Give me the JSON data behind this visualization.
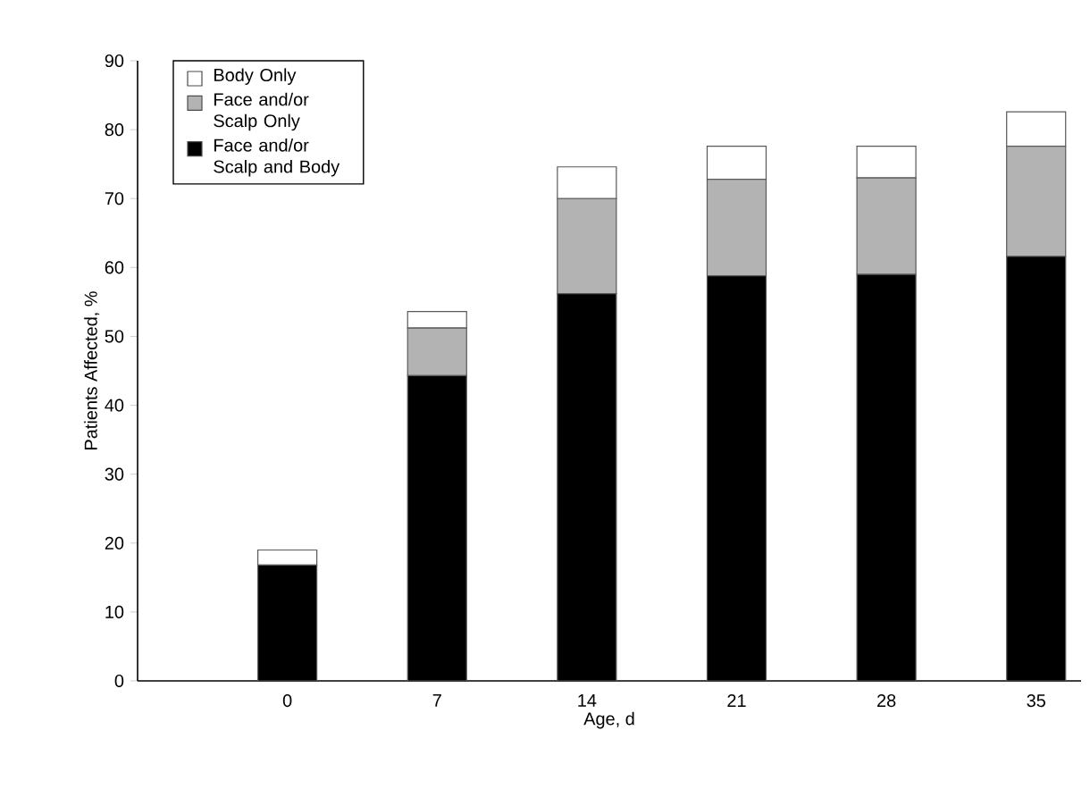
{
  "chart_data": {
    "type": "bar",
    "stacked": true,
    "xlabel": "Age, d",
    "ylabel": "Patients Affected, %",
    "categories": [
      "0",
      "7",
      "14",
      "21",
      "28",
      "35"
    ],
    "series": [
      {
        "name": "Face and/or Scalp and Body",
        "color": "#000000",
        "values": [
          16.8,
          44.3,
          56.2,
          58.8,
          59.0,
          61.6
        ]
      },
      {
        "name": "Face and/or Scalp Only",
        "color": "#b3b3b3",
        "values": [
          0,
          6.9,
          13.8,
          14.0,
          14.0,
          16.0
        ]
      },
      {
        "name": "Body Only",
        "color": "#ffffff",
        "values": [
          2.2,
          2.4,
          4.6,
          4.8,
          4.6,
          5.0
        ]
      }
    ],
    "ylim": [
      0,
      90
    ],
    "yticks": [
      0,
      10,
      20,
      30,
      40,
      50,
      60,
      70,
      80,
      90
    ],
    "grid": false,
    "legend": "top left"
  }
}
